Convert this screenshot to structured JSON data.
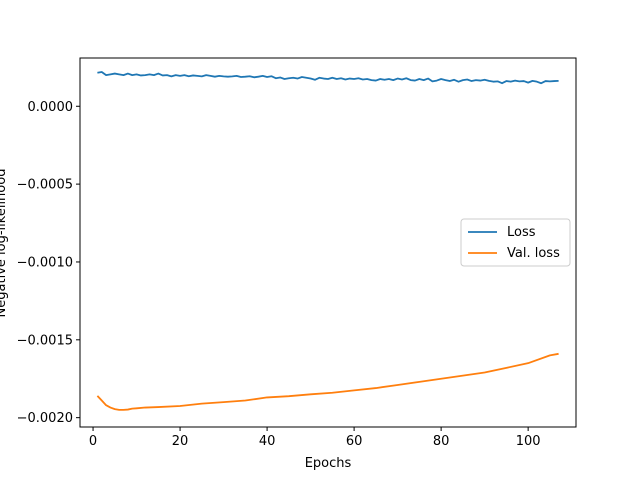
{
  "chart_data": {
    "type": "line",
    "xlabel": "Epochs",
    "ylabel": "Negative log-likelihood",
    "xlim": [
      -3,
      111
    ],
    "ylim": [
      -0.00206,
      0.00031
    ],
    "grid": false,
    "legend_position": "center-right",
    "x_ticks": [
      0,
      20,
      40,
      60,
      80,
      100
    ],
    "x_tick_labels": [
      "0",
      "20",
      "40",
      "60",
      "80",
      "100"
    ],
    "y_ticks": [
      0.0,
      -0.0005,
      -0.001,
      -0.0015,
      -0.002
    ],
    "y_tick_labels": [
      "0.0000",
      "−0.0005",
      "−0.0010",
      "−0.0015",
      "−0.0020"
    ],
    "series": [
      {
        "name": "Loss",
        "color": "#1f77b4",
        "x": [
          1,
          2,
          3,
          4,
          5,
          6,
          7,
          8,
          9,
          10,
          11,
          12,
          13,
          14,
          15,
          16,
          17,
          18,
          19,
          20,
          21,
          22,
          23,
          24,
          25,
          26,
          27,
          28,
          29,
          30,
          31,
          32,
          33,
          34,
          35,
          36,
          37,
          38,
          39,
          40,
          41,
          42,
          43,
          44,
          45,
          46,
          47,
          48,
          49,
          50,
          51,
          52,
          53,
          54,
          55,
          56,
          57,
          58,
          59,
          60,
          61,
          62,
          63,
          64,
          65,
          66,
          67,
          68,
          69,
          70,
          71,
          72,
          73,
          74,
          75,
          76,
          77,
          78,
          79,
          80,
          81,
          82,
          83,
          84,
          85,
          86,
          87,
          88,
          89,
          90,
          91,
          92,
          93,
          94,
          95,
          96,
          97,
          98,
          99,
          100,
          101,
          102,
          103,
          104,
          105,
          106,
          107
        ],
        "y": [
          0.000215,
          0.00022,
          0.0002,
          0.000205,
          0.00021,
          0.000205,
          0.0002,
          0.00021,
          0.0002,
          0.000205,
          0.000198,
          0.0002,
          0.000205,
          0.0002,
          0.00021,
          0.000198,
          0.0002,
          0.000192,
          0.0002,
          0.000195,
          0.0002,
          0.000193,
          0.000198,
          0.000195,
          0.000192,
          0.0002,
          0.000195,
          0.00019,
          0.000195,
          0.000192,
          0.00019,
          0.000192,
          0.000195,
          0.000188,
          0.00019,
          0.000193,
          0.000186,
          0.00019,
          0.000195,
          0.000188,
          0.000193,
          0.00018,
          0.000185,
          0.000175,
          0.00018,
          0.000183,
          0.000178,
          0.000188,
          0.000183,
          0.000178,
          0.00017,
          0.000183,
          0.000178,
          0.000175,
          0.000183,
          0.000175,
          0.00018,
          0.000172,
          0.000178,
          0.000175,
          0.00018,
          0.000172,
          0.000175,
          0.000168,
          0.000165,
          0.000175,
          0.00017,
          0.000175,
          0.000168,
          0.000178,
          0.000172,
          0.00018,
          0.000168,
          0.000165,
          0.000175,
          0.000168,
          0.000178,
          0.00016,
          0.000165,
          0.000175,
          0.000168,
          0.000162,
          0.00017,
          0.000158,
          0.000168,
          0.000172,
          0.000162,
          0.000168,
          0.000165,
          0.00017,
          0.000163,
          0.000158,
          0.00016,
          0.000148,
          0.000162,
          0.000158,
          0.000165,
          0.00016,
          0.000162,
          0.000152,
          0.000163,
          0.000158,
          0.000148,
          0.000162,
          0.00016,
          0.000162,
          0.000163
        ]
      },
      {
        "name": "Val. loss",
        "color": "#ff7f0e",
        "x": [
          1,
          2,
          3,
          4,
          5,
          6,
          7,
          8,
          9,
          10,
          12,
          15,
          20,
          25,
          30,
          35,
          40,
          45,
          50,
          55,
          60,
          65,
          70,
          75,
          80,
          85,
          90,
          95,
          100,
          105,
          107
        ],
        "y": [
          -0.00186,
          -0.00189,
          -0.00192,
          -0.001935,
          -0.001945,
          -0.00195,
          -0.00195,
          -0.001948,
          -0.001942,
          -0.00194,
          -0.001935,
          -0.001932,
          -0.001925,
          -0.00191,
          -0.0019,
          -0.00189,
          -0.00187,
          -0.001862,
          -0.00185,
          -0.00184,
          -0.001825,
          -0.00181,
          -0.00179,
          -0.00177,
          -0.00175,
          -0.00173,
          -0.00171,
          -0.00168,
          -0.00165,
          -0.0016,
          -0.00159
        ]
      }
    ]
  }
}
